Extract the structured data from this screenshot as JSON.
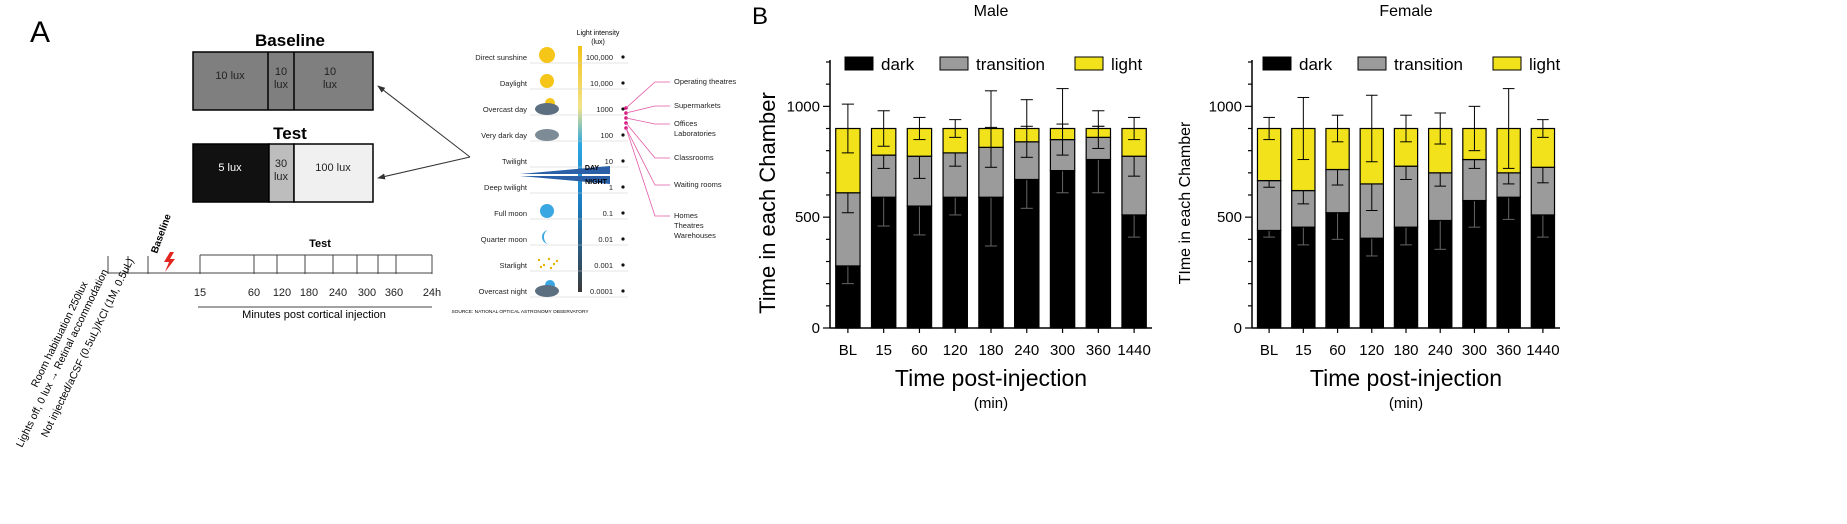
{
  "panel_a": {
    "label": "A",
    "baseline": {
      "title": "Baseline",
      "zones": [
        "10 lux",
        "10\nlux",
        "10\nlux"
      ]
    },
    "test": {
      "title": "Test",
      "zones": [
        "5 lux",
        "30\nlux",
        "100 lux"
      ]
    },
    "timeline": {
      "baseline_label": "Baseline",
      "test_label": "Test",
      "ticks": [
        "15",
        "60",
        "120",
        "180",
        "240",
        "300",
        "360",
        "24h"
      ],
      "axis_caption": "Minutes post cortical injection",
      "rotated_labels": [
        "Room habituation 250lux",
        "Lights off, 0 lux → Retinal accommodation",
        "Not injected/aCSF (0.5uL)/KCl (1M, 0.5uL)"
      ]
    },
    "light_scale": {
      "header": "Light intensity\n(lux)",
      "levels": [
        {
          "name": "Direct sunshine",
          "lux": "100,000"
        },
        {
          "name": "Daylight",
          "lux": "10,000"
        },
        {
          "name": "Overcast day",
          "lux": "1000"
        },
        {
          "name": "Very dark day",
          "lux": "100"
        },
        {
          "name": "Twilight",
          "lux": "10"
        },
        {
          "name": "Deep twilight",
          "lux": "1"
        },
        {
          "name": "Full moon",
          "lux": "0.1"
        },
        {
          "name": "Quarter moon",
          "lux": "0.01"
        },
        {
          "name": "Starlight",
          "lux": "0.001"
        },
        {
          "name": "Overcast night",
          "lux": "0.0001"
        }
      ],
      "day_label": "DAY",
      "night_label": "NIGHT",
      "places": [
        "Operating theatres",
        "Supermarkets",
        "Offices\nLaboratories",
        "Classrooms",
        "Waiting rooms",
        "Homes\nTheatres\nWarehouses"
      ],
      "source": "SOURCE: NATIONAL OPTICAL ASTRONOMY OBSERVATORY"
    }
  },
  "panel_b": {
    "label": "B"
  },
  "colors": {
    "dark": "#000000",
    "transition": "#9b9b9b",
    "light": "#f2e21b"
  },
  "chart_data": [
    {
      "type": "bar",
      "stacked": true,
      "title": "Male",
      "xlabel": "Time post-injection",
      "xlabel_unit": "(min)",
      "ylabel": "Time in each Chamber",
      "categories": [
        "BL",
        "15",
        "60",
        "120",
        "180",
        "240",
        "300",
        "360",
        "1440"
      ],
      "ylim": [
        0,
        1200
      ],
      "yticks": [
        0,
        500,
        1000
      ],
      "legend": [
        "dark",
        "transition",
        "light"
      ],
      "series": [
        {
          "name": "dark",
          "values": [
            280,
            590,
            550,
            590,
            590,
            670,
            710,
            760,
            510
          ],
          "err": [
            80,
            130,
            130,
            80,
            220,
            130,
            100,
            150,
            100
          ]
        },
        {
          "name": "transition",
          "values": [
            330,
            190,
            225,
            200,
            225,
            170,
            140,
            100,
            265
          ],
          "err": [
            90,
            60,
            100,
            60,
            90,
            70,
            70,
            50,
            90
          ]
        },
        {
          "name": "light",
          "values": [
            290,
            120,
            125,
            110,
            85,
            60,
            50,
            40,
            125
          ],
          "err": [
            110,
            80,
            50,
            40,
            170,
            130,
            180,
            80,
            50
          ]
        }
      ]
    },
    {
      "type": "bar",
      "stacked": true,
      "title": "Female",
      "xlabel": "Time post-injection",
      "xlabel_unit": "(min)",
      "ylabel": "TIme in each Chamber",
      "categories": [
        "BL",
        "15",
        "60",
        "120",
        "180",
        "240",
        "300",
        "360",
        "1440"
      ],
      "ylim": [
        0,
        1200
      ],
      "yticks": [
        0,
        500,
        1000
      ],
      "legend": [
        "dark",
        "transition",
        "light"
      ],
      "series": [
        {
          "name": "dark",
          "values": [
            440,
            455,
            520,
            405,
            455,
            485,
            575,
            590,
            510
          ],
          "err": [
            30,
            80,
            120,
            80,
            80,
            130,
            120,
            100,
            100
          ]
        },
        {
          "name": "transition",
          "values": [
            225,
            165,
            195,
            245,
            275,
            215,
            185,
            110,
            215
          ],
          "err": [
            30,
            60,
            70,
            120,
            60,
            60,
            40,
            50,
            70
          ]
        },
        {
          "name": "light",
          "values": [
            235,
            280,
            185,
            250,
            170,
            200,
            140,
            200,
            175
          ],
          "err": [
            50,
            140,
            60,
            150,
            60,
            70,
            100,
            180,
            40
          ]
        }
      ]
    }
  ]
}
